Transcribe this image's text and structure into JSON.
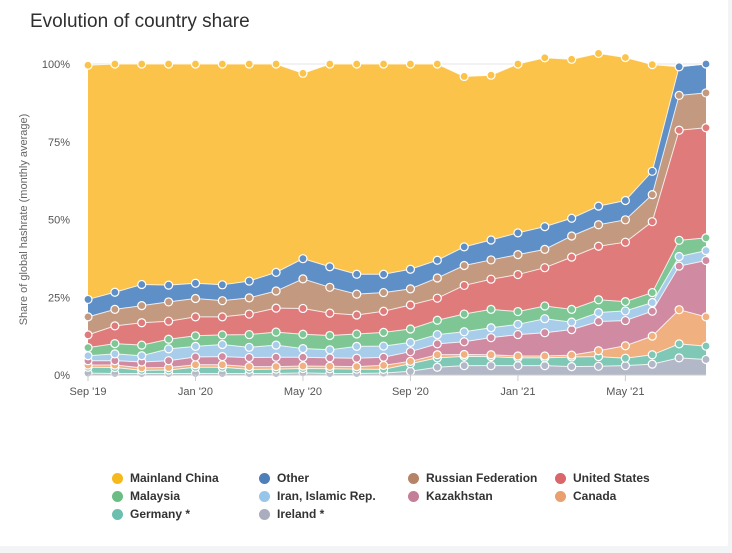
{
  "title": "Evolution of country share",
  "chart_data": {
    "type": "area",
    "stacked": true,
    "title": "Evolution of country share",
    "xlabel": "",
    "ylabel": "Share of global hashrate (monthly average)",
    "ylim": [
      0,
      100
    ],
    "y_ticks": [
      "0%",
      "25%",
      "50%",
      "75%",
      "100%"
    ],
    "x_ticks": [
      {
        "label": "Sep '19",
        "index": 0
      },
      {
        "label": "Jan '20",
        "index": 4
      },
      {
        "label": "May '20",
        "index": 8
      },
      {
        "label": "Sep '20",
        "index": 12
      },
      {
        "label": "Jan '21",
        "index": 16
      },
      {
        "label": "May '21",
        "index": 20
      }
    ],
    "x": [
      "Sep 2019",
      "Oct 2019",
      "Nov 2019",
      "Dec 2019",
      "Jan 2020",
      "Feb 2020",
      "Mar 2020",
      "Apr 2020",
      "May 2020",
      "Jun 2020",
      "Jul 2020",
      "Aug 2020",
      "Sep 2020",
      "Oct 2020",
      "Nov 2020",
      "Dec 2020",
      "Jan 2021",
      "Feb 2021",
      "Mar 2021",
      "Apr 2021",
      "May 2021",
      "Jun 2021",
      "Jul 2021",
      "Aug 2021"
    ],
    "series": [
      {
        "name": "Ireland *",
        "color": "#b3b8c8",
        "values": [
          0.6,
          0.5,
          0.5,
          0.5,
          0.5,
          0.5,
          0.5,
          0.5,
          0.7,
          0.5,
          0.5,
          0.6,
          1.2,
          2.5,
          3.0,
          3.0,
          3.0,
          3.0,
          2.7,
          2.8,
          3.0,
          3.5,
          5.5,
          5.0
        ]
      },
      {
        "name": "Germany *",
        "color": "#7ec8b5",
        "values": [
          1.9,
          1.9,
          1.0,
          1.1,
          2.0,
          2.0,
          1.3,
          1.4,
          1.4,
          1.5,
          1.4,
          1.2,
          2.4,
          3.0,
          3.0,
          2.9,
          2.5,
          2.5,
          3.1,
          3.1,
          2.4,
          3.0,
          4.5,
          4.3
        ]
      },
      {
        "name": "Canada",
        "color": "#f0b080",
        "values": [
          0.7,
          0.8,
          0.8,
          0.8,
          0.8,
          0.8,
          0.9,
          0.8,
          0.8,
          0.8,
          0.8,
          1.3,
          0.8,
          1.0,
          0.6,
          0.6,
          0.6,
          0.6,
          0.6,
          1.9,
          4.0,
          6.0,
          11.0,
          9.4
        ]
      },
      {
        "name": "Kazakhstan",
        "color": "#d08aa2",
        "values": [
          1.4,
          1.4,
          1.9,
          2.2,
          2.5,
          2.6,
          2.9,
          3.0,
          2.8,
          2.7,
          2.7,
          2.6,
          3.1,
          3.5,
          4.1,
          5.5,
          6.9,
          7.5,
          8.2,
          9.4,
          8.1,
          8.0,
          14.0,
          18.1
        ]
      },
      {
        "name": "Iran, Islamic Rep.",
        "color": "#a8cdea",
        "values": [
          1.6,
          2.2,
          2.0,
          3.8,
          3.4,
          3.9,
          3.3,
          3.9,
          2.8,
          2.6,
          3.8,
          3.6,
          3.0,
          3.0,
          3.2,
          3.2,
          3.3,
          4.5,
          2.4,
          2.9,
          3.1,
          2.8,
          3.1,
          3.2
        ]
      },
      {
        "name": "Malaysia",
        "color": "#7ec795",
        "values": [
          2.6,
          3.3,
          3.4,
          3.1,
          3.4,
          3.1,
          4.1,
          4.2,
          4.6,
          4.6,
          4.0,
          4.4,
          4.3,
          4.6,
          5.7,
          5.9,
          4.1,
          4.1,
          4.1,
          4.1,
          3.0,
          3.2,
          5.2,
          4.1
        ]
      },
      {
        "name": "United States",
        "color": "#e07b7b",
        "values": [
          4.1,
          5.7,
          7.2,
          5.8,
          6.1,
          5.8,
          6.6,
          7.7,
          8.3,
          7.2,
          6.1,
          6.8,
          7.7,
          7.1,
          9.2,
          9.7,
          11.9,
          12.3,
          16.8,
          17.2,
          19.1,
          22.8,
          35.4,
          35.4
        ]
      },
      {
        "name": "Russian Federation",
        "color": "#c39a80",
        "values": [
          5.8,
          5.3,
          5.5,
          6.2,
          5.9,
          5.2,
          5.2,
          5.5,
          9.5,
          8.3,
          6.7,
          6.0,
          5.2,
          6.5,
          6.4,
          6.2,
          6.4,
          5.9,
          6.8,
          6.9,
          7.2,
          8.7,
          11.2,
          11.2
        ]
      },
      {
        "name": "Other",
        "color": "#5f8fc7",
        "values": [
          5.6,
          5.5,
          6.8,
          5.4,
          4.9,
          5.1,
          5.4,
          6.0,
          6.5,
          6.6,
          6.4,
          5.9,
          6.3,
          5.7,
          6.0,
          6.4,
          7.0,
          7.3,
          5.7,
          6.0,
          6.2,
          7.5,
          9.2,
          9.3
        ]
      },
      {
        "name": "Mainland China",
        "color": "#fcc34a",
        "values": [
          75.3,
          73.4,
          70.9,
          71.1,
          70.5,
          71.0,
          69.8,
          67.0,
          59.6,
          65.2,
          67.6,
          67.6,
          66.0,
          63.1,
          54.8,
          53.0,
          54.3,
          54.3,
          51.1,
          49.1,
          46.0,
          34.3,
          0.0,
          0.0
        ]
      }
    ]
  },
  "legend": {
    "items": [
      {
        "label": "Mainland China",
        "color": "#f5b91e"
      },
      {
        "label": "Other",
        "color": "#4f7fb8"
      },
      {
        "label": "Russian Federation",
        "color": "#b58468"
      },
      {
        "label": "United States",
        "color": "#d9666a"
      },
      {
        "label": "Malaysia",
        "color": "#6bbd84"
      },
      {
        "label": "Iran, Islamic Rep.",
        "color": "#98c6ea"
      },
      {
        "label": "Kazakhstan",
        "color": "#c47e98"
      },
      {
        "label": "Canada",
        "color": "#e9a06e"
      },
      {
        "label": "Germany *",
        "color": "#6cbfae"
      },
      {
        "label": "Ireland *",
        "color": "#a9adbd"
      }
    ]
  }
}
